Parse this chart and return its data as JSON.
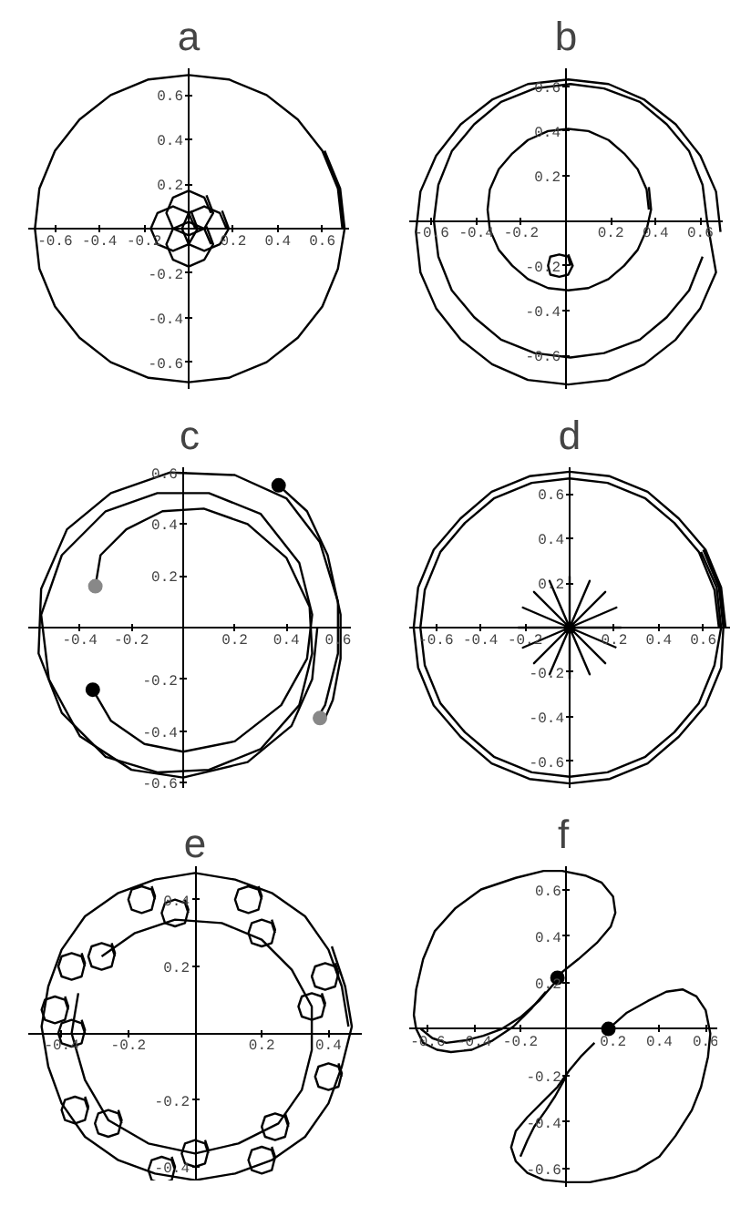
{
  "chart_data": [
    {
      "type": "line",
      "title": "a",
      "xlim": [
        -0.72,
        0.72
      ],
      "ylim": [
        -0.72,
        0.72
      ],
      "xticks": [
        -0.6,
        -0.4,
        -0.2,
        0.2,
        0.4,
        0.6
      ],
      "yticks": [
        -0.6,
        -0.4,
        -0.2,
        0.2,
        0.4,
        0.6
      ],
      "series": [
        {
          "color": "#000000",
          "x": [
            0.69,
            0.67,
            0.6,
            0.49,
            0.35,
            0.18,
            0,
            -0.18,
            -0.35,
            -0.49,
            -0.6,
            -0.67,
            -0.69,
            -0.67,
            -0.6,
            -0.49,
            -0.35,
            -0.18,
            0,
            0.18,
            0.35,
            0.49,
            0.6,
            0.67,
            0.7,
            0.68,
            0.61
          ],
          "values": [
            0,
            0.18,
            0.35,
            0.49,
            0.6,
            0.67,
            0.69,
            0.67,
            0.6,
            0.49,
            0.35,
            0.18,
            0,
            -0.18,
            -0.35,
            -0.49,
            -0.6,
            -0.67,
            -0.69,
            -0.67,
            -0.6,
            -0.49,
            -0.35,
            -0.18,
            0,
            0.18,
            0.35
          ]
        },
        {
          "color": "#000000",
          "x": [
            0.17,
            0.14,
            0.07,
            0,
            -0.03,
            0,
            0.07,
            0.14,
            0.18,
            0.15
          ],
          "values": [
            0,
            0.07,
            0.1,
            0.07,
            0,
            -0.07,
            -0.1,
            -0.07,
            0,
            0.08
          ]
        },
        {
          "color": "#000000",
          "x": [
            0.03,
            0,
            -0.07,
            -0.14,
            -0.17,
            -0.14,
            -0.07,
            0,
            0.04,
            0.01
          ],
          "values": [
            0,
            0.07,
            0.1,
            0.07,
            0,
            -0.07,
            -0.1,
            -0.07,
            0,
            0.08
          ]
        },
        {
          "color": "#000000",
          "x": [
            0.1,
            0.07,
            0,
            -0.07,
            -0.1,
            -0.07,
            0,
            0.07,
            0.11,
            0.08
          ],
          "values": [
            0.07,
            0.14,
            0.17,
            0.14,
            0.07,
            0,
            -0.03,
            0,
            0.07,
            0.15
          ]
        },
        {
          "color": "#000000",
          "x": [
            0.1,
            0.07,
            0,
            -0.07,
            -0.1,
            -0.07,
            0,
            0.07,
            0.11,
            0.08
          ],
          "values": [
            -0.07,
            0,
            0.03,
            0,
            -0.07,
            -0.14,
            -0.17,
            -0.14,
            -0.07,
            0.01
          ]
        }
      ]
    },
    {
      "type": "line",
      "title": "b",
      "xlim": [
        -0.7,
        0.7
      ],
      "ylim": [
        -0.75,
        0.68
      ],
      "xticks": [
        -0.6,
        -0.4,
        -0.2,
        0.2,
        0.4,
        0.6
      ],
      "yticks": [
        -0.6,
        -0.4,
        -0.2,
        0.2,
        0.4,
        0.6
      ],
      "series": [
        {
          "color": "#000000",
          "x": [
            0.69,
            0.67,
            0.6,
            0.49,
            0.35,
            0.19,
            0.01,
            -0.17,
            -0.33,
            -0.47,
            -0.58,
            -0.65,
            -0.67,
            -0.65,
            -0.58,
            -0.47,
            -0.33,
            -0.17,
            0.01,
            0.19,
            0.35,
            0.49,
            0.6,
            0.67,
            0.63,
            0.61,
            0.55,
            0.45,
            0.33,
            0.17,
            0.02,
            -0.14,
            -0.29,
            -0.41,
            -0.51,
            -0.57,
            -0.59,
            -0.57,
            -0.51,
            -0.41,
            -0.29,
            -0.14,
            0.02,
            0.17,
            0.33,
            0.45,
            0.55,
            0.61
          ],
          "values": [
            -0.05,
            0.13,
            0.29,
            0.43,
            0.54,
            0.61,
            0.63,
            0.61,
            0.54,
            0.43,
            0.29,
            0.13,
            -0.05,
            -0.23,
            -0.39,
            -0.53,
            -0.64,
            -0.71,
            -0.73,
            -0.71,
            -0.64,
            -0.53,
            -0.39,
            -0.23,
            0,
            0.16,
            0.31,
            0.43,
            0.53,
            0.59,
            0.61,
            0.59,
            0.53,
            0.43,
            0.31,
            0.16,
            0,
            -0.16,
            -0.31,
            -0.43,
            -0.53,
            -0.59,
            -0.61,
            -0.59,
            -0.53,
            -0.43,
            -0.31,
            -0.16
          ]
        },
        {
          "color": "#000000",
          "x": [
            0.37,
            0.36,
            0.32,
            0.26,
            0.19,
            0.1,
            0.01,
            -0.08,
            -0.17,
            -0.24,
            -0.3,
            -0.34,
            -0.35,
            -0.34,
            -0.3,
            -0.24,
            -0.17,
            -0.08,
            0.01,
            0.1,
            0.19,
            0.26,
            0.32,
            0.36,
            0.38,
            0.37
          ],
          "values": [
            0.05,
            0.14,
            0.23,
            0.3,
            0.36,
            0.4,
            0.41,
            0.4,
            0.36,
            0.3,
            0.23,
            0.14,
            0.05,
            -0.04,
            -0.13,
            -0.2,
            -0.26,
            -0.3,
            -0.31,
            -0.3,
            -0.26,
            -0.2,
            -0.13,
            -0.04,
            0.05,
            0.15
          ]
        },
        {
          "color": "#000000",
          "x": [
            0.02,
            0.01,
            -0.03,
            -0.07,
            -0.08,
            -0.07,
            -0.03,
            0.01,
            0.03,
            0.01
          ],
          "values": [
            -0.2,
            -0.16,
            -0.15,
            -0.16,
            -0.2,
            -0.24,
            -0.25,
            -0.24,
            -0.2,
            -0.15
          ]
        }
      ]
    },
    {
      "type": "line",
      "title": "c",
      "xlim": [
        -0.6,
        0.65
      ],
      "ylim": [
        -0.62,
        0.62
      ],
      "xticks": [
        -0.4,
        -0.2,
        0.2,
        0.4,
        0.6
      ],
      "yticks": [
        -0.6,
        -0.4,
        -0.2,
        0.2,
        0.4,
        0.6
      ],
      "series": [
        {
          "color": "#000000",
          "x": [
            -0.35,
            -0.28,
            -0.15,
            0,
            0.2,
            0.38,
            0.48,
            0.5,
            0.45,
            0.3,
            0.1,
            -0.1,
            -0.3,
            -0.47,
            -0.55,
            -0.52,
            -0.4,
            -0.2,
            0,
            0.25,
            0.42,
            0.5,
            0.52
          ],
          "values": [
            -0.24,
            -0.36,
            -0.45,
            -0.48,
            -0.44,
            -0.3,
            -0.12,
            0.05,
            0.25,
            0.44,
            0.52,
            0.52,
            0.45,
            0.28,
            0.05,
            -0.2,
            -0.42,
            -0.55,
            -0.58,
            -0.52,
            -0.38,
            -0.2,
            0
          ]
        },
        {
          "color": "#000000",
          "x": [
            -0.34,
            -0.32,
            -0.22,
            -0.08,
            0.08,
            0.25,
            0.4,
            0.49,
            0.5,
            0.45,
            0.3,
            0.1,
            -0.1,
            -0.3,
            -0.47,
            -0.56,
            -0.55,
            -0.45,
            -0.28,
            -0.05,
            0.2,
            0.4,
            0.53,
            0.6,
            0.6,
            0.55,
            0.52
          ],
          "values": [
            0.16,
            0.28,
            0.38,
            0.45,
            0.46,
            0.4,
            0.27,
            0.08,
            -0.1,
            -0.3,
            -0.47,
            -0.55,
            -0.56,
            -0.5,
            -0.33,
            -0.1,
            0.15,
            0.38,
            0.52,
            0.6,
            0.59,
            0.5,
            0.33,
            0.1,
            -0.1,
            -0.3,
            -0.35
          ]
        },
        {
          "color": "#000000",
          "x": [
            0.37,
            0.48,
            0.56,
            0.61,
            0.61,
            0.58,
            0.55
          ],
          "values": [
            0.55,
            0.45,
            0.28,
            0.05,
            -0.12,
            -0.28,
            -0.35
          ]
        },
        {
          "type": "scatter",
          "marker": "circle",
          "color": "#000000",
          "x": [
            0.37,
            -0.35
          ],
          "values": [
            0.55,
            -0.24
          ]
        },
        {
          "type": "scatter",
          "marker": "circle",
          "color": "#888888",
          "x": [
            -0.34,
            0.53
          ],
          "values": [
            0.16,
            -0.35
          ]
        }
      ]
    },
    {
      "type": "line",
      "title": "d",
      "xlim": [
        -0.72,
        0.72
      ],
      "ylim": [
        -0.72,
        0.72
      ],
      "xticks": [
        -0.6,
        -0.4,
        -0.2,
        0.2,
        0.4,
        0.6
      ],
      "yticks": [
        -0.6,
        -0.4,
        -0.2,
        0.2,
        0.4,
        0.6
      ],
      "series": [
        {
          "color": "#000000",
          "x": [
            0.67,
            0.65,
            0.58,
            0.47,
            0.34,
            0.17,
            0,
            -0.17,
            -0.34,
            -0.47,
            -0.58,
            -0.65,
            -0.67,
            -0.65,
            -0.58,
            -0.47,
            -0.34,
            -0.17,
            0,
            0.17,
            0.34,
            0.47,
            0.58,
            0.65,
            0.68,
            0.66,
            0.59
          ],
          "values": [
            0,
            0.17,
            0.34,
            0.47,
            0.58,
            0.65,
            0.67,
            0.65,
            0.58,
            0.47,
            0.34,
            0.17,
            0,
            -0.17,
            -0.34,
            -0.47,
            -0.58,
            -0.65,
            -0.67,
            -0.65,
            -0.58,
            -0.47,
            -0.34,
            -0.17,
            0,
            0.18,
            0.34
          ]
        },
        {
          "color": "#000000",
          "x": [
            0.7,
            0.68,
            0.61,
            0.49,
            0.35,
            0.18,
            0,
            -0.18,
            -0.35,
            -0.49,
            -0.61,
            -0.68,
            -0.7,
            -0.68,
            -0.61,
            -0.49,
            -0.35,
            -0.18,
            0,
            0.18,
            0.35,
            0.49,
            0.61,
            0.68,
            0.69,
            0.67,
            0.6
          ],
          "values": [
            0,
            0.18,
            0.35,
            0.49,
            0.61,
            0.68,
            0.7,
            0.68,
            0.61,
            0.49,
            0.35,
            0.18,
            0,
            -0.18,
            -0.35,
            -0.49,
            -0.61,
            -0.68,
            -0.7,
            -0.68,
            -0.61,
            -0.49,
            -0.35,
            -0.18,
            0,
            0.18,
            0.35
          ]
        },
        {
          "color": "#000000",
          "x": [
            0,
            0.23,
            0,
            0.21,
            0,
            0.16,
            0,
            0.09,
            0,
            0,
            0,
            -0.09,
            0,
            -0.16,
            0,
            -0.21,
            0,
            -0.23,
            0,
            -0.21,
            0,
            -0.16,
            0,
            -0.09,
            0,
            0,
            0,
            0.09,
            0,
            0.16,
            0,
            0.21
          ],
          "values": [
            0,
            0,
            0,
            0.09,
            0,
            0.16,
            0,
            0.21,
            0,
            0.23,
            0,
            0.21,
            0,
            0.16,
            0,
            0.09,
            0,
            0,
            0,
            -0.09,
            0,
            -0.16,
            0,
            -0.21,
            0,
            -0.23,
            0,
            -0.21,
            0,
            -0.16,
            0,
            -0.09
          ]
        }
      ]
    },
    {
      "type": "line",
      "title": "e",
      "xlim": [
        -0.5,
        0.5
      ],
      "ylim": [
        -0.46,
        0.5
      ],
      "xticks": [
        -0.4,
        -0.2,
        0.2,
        0.4
      ],
      "yticks": [
        -0.4,
        -0.2,
        0.2,
        0.4
      ],
      "series": [
        {
          "color": "#000000",
          "x": [
            0.46,
            0.44,
            0.4,
            0.33,
            0.23,
            0.12,
            0,
            -0.12,
            -0.23,
            -0.33,
            -0.4,
            -0.44,
            -0.46,
            -0.44,
            -0.4,
            -0.33,
            -0.23,
            -0.12,
            0,
            0.12,
            0.23,
            0.33,
            0.4,
            0.44,
            0.47,
            0.45,
            0.41
          ],
          "values": [
            0.02,
            0.14,
            0.25,
            0.35,
            0.42,
            0.46,
            0.48,
            0.46,
            0.42,
            0.35,
            0.25,
            0.14,
            0.02,
            -0.1,
            -0.21,
            -0.31,
            -0.38,
            -0.42,
            -0.44,
            -0.42,
            -0.38,
            -0.31,
            -0.21,
            -0.1,
            0.02,
            0.14,
            0.26
          ]
        },
        {
          "color": "#000000",
          "x": [
            -0.28,
            -0.18,
            -0.06,
            0.08,
            0.2,
            0.29,
            0.35,
            0.35,
            0.32,
            0.25,
            0.13,
            0,
            -0.14,
            -0.26,
            -0.33,
            -0.37,
            -0.35
          ],
          "values": [
            0.23,
            0.3,
            0.34,
            0.33,
            0.28,
            0.19,
            0.08,
            -0.05,
            -0.17,
            -0.27,
            -0.33,
            -0.36,
            -0.33,
            -0.26,
            -0.14,
            0,
            0.12
          ]
        },
        {
          "color": "#000000",
          "x": [
            -0.12,
            -0.13,
            -0.16,
            -0.19,
            -0.2,
            -0.19,
            -0.16,
            -0.13,
            -0.12,
            -0.13
          ],
          "values": [
            0.4,
            0.43,
            0.44,
            0.43,
            0.4,
            0.37,
            0.36,
            0.37,
            0.41,
            0.44
          ]
        },
        {
          "color": "#000000",
          "x": [
            -0.02,
            -0.03,
            -0.06,
            -0.09,
            -0.1,
            -0.09,
            -0.06,
            -0.03,
            -0.02,
            -0.03
          ],
          "values": [
            0.36,
            0.39,
            0.4,
            0.39,
            0.36,
            0.33,
            0.32,
            0.33,
            0.37,
            0.4
          ]
        },
        {
          "color": "#000000",
          "x": [
            0.2,
            0.19,
            0.16,
            0.13,
            0.12,
            0.13,
            0.16,
            0.19,
            0.2,
            0.19
          ],
          "values": [
            0.4,
            0.43,
            0.44,
            0.43,
            0.4,
            0.37,
            0.36,
            0.37,
            0.41,
            0.44
          ]
        },
        {
          "color": "#000000",
          "x": [
            0.24,
            0.23,
            0.2,
            0.17,
            0.16,
            0.17,
            0.2,
            0.23,
            0.24,
            0.23
          ],
          "values": [
            0.3,
            0.33,
            0.34,
            0.33,
            0.3,
            0.27,
            0.26,
            0.27,
            0.31,
            0.34
          ]
        },
        {
          "color": "#000000",
          "x": [
            0.43,
            0.42,
            0.39,
            0.36,
            0.35,
            0.36,
            0.39,
            0.42,
            0.43,
            0.42
          ],
          "values": [
            0.17,
            0.2,
            0.21,
            0.2,
            0.17,
            0.14,
            0.13,
            0.14,
            0.18,
            0.21
          ]
        },
        {
          "color": "#000000",
          "x": [
            0.39,
            0.38,
            0.35,
            0.32,
            0.31,
            0.32,
            0.35,
            0.38,
            0.39,
            0.38
          ],
          "values": [
            0.08,
            0.11,
            0.12,
            0.11,
            0.08,
            0.05,
            0.04,
            0.05,
            0.09,
            0.12
          ]
        },
        {
          "color": "#000000",
          "x": [
            0.44,
            0.43,
            0.4,
            0.37,
            0.36,
            0.37,
            0.4,
            0.43,
            0.44,
            0.43
          ],
          "values": [
            -0.13,
            -0.1,
            -0.09,
            -0.1,
            -0.13,
            -0.16,
            -0.17,
            -0.16,
            -0.12,
            -0.09
          ]
        },
        {
          "color": "#000000",
          "x": [
            0.28,
            0.27,
            0.24,
            0.21,
            0.2,
            0.21,
            0.24,
            0.27,
            0.28,
            0.27
          ],
          "values": [
            -0.28,
            -0.25,
            -0.24,
            -0.25,
            -0.28,
            -0.31,
            -0.32,
            -0.31,
            -0.27,
            -0.24
          ]
        },
        {
          "color": "#000000",
          "x": [
            0.24,
            0.23,
            0.2,
            0.17,
            0.16,
            0.17,
            0.2,
            0.23,
            0.24,
            0.23
          ],
          "values": [
            -0.38,
            -0.35,
            -0.34,
            -0.35,
            -0.38,
            -0.41,
            -0.42,
            -0.41,
            -0.37,
            -0.34
          ]
        },
        {
          "color": "#000000",
          "x": [
            0.04,
            0.03,
            0,
            -0.03,
            -0.04,
            -0.03,
            0,
            0.03,
            0.04,
            0.03
          ],
          "values": [
            -0.36,
            -0.33,
            -0.32,
            -0.33,
            -0.36,
            -0.39,
            -0.4,
            -0.39,
            -0.35,
            -0.32
          ]
        },
        {
          "color": "#000000",
          "x": [
            -0.06,
            -0.07,
            -0.1,
            -0.13,
            -0.14,
            -0.13,
            -0.1,
            -0.07,
            -0.06,
            -0.07
          ],
          "values": [
            -0.41,
            -0.38,
            -0.37,
            -0.38,
            -0.41,
            -0.44,
            -0.45,
            -0.44,
            -0.4,
            -0.37
          ]
        },
        {
          "color": "#000000",
          "x": [
            -0.22,
            -0.23,
            -0.26,
            -0.29,
            -0.3,
            -0.29,
            -0.26,
            -0.23,
            -0.22,
            -0.23
          ],
          "values": [
            -0.27,
            -0.24,
            -0.23,
            -0.24,
            -0.27,
            -0.3,
            -0.31,
            -0.3,
            -0.26,
            -0.23
          ]
        },
        {
          "color": "#000000",
          "x": [
            -0.32,
            -0.33,
            -0.36,
            -0.39,
            -0.4,
            -0.39,
            -0.36,
            -0.33,
            -0.32,
            -0.33
          ],
          "values": [
            -0.23,
            -0.2,
            -0.19,
            -0.2,
            -0.23,
            -0.26,
            -0.27,
            -0.26,
            -0.22,
            -0.19
          ]
        },
        {
          "color": "#000000",
          "x": [
            -0.33,
            -0.34,
            -0.37,
            -0.4,
            -0.41,
            -0.4,
            -0.37,
            -0.34,
            -0.33,
            -0.34
          ],
          "values": [
            0,
            0.03,
            0.04,
            0.03,
            0,
            -0.03,
            -0.04,
            -0.03,
            0.01,
            0.04
          ]
        },
        {
          "color": "#000000",
          "x": [
            -0.38,
            -0.39,
            -0.42,
            -0.45,
            -0.46,
            -0.45,
            -0.42,
            -0.39,
            -0.38,
            -0.39
          ],
          "values": [
            0.07,
            0.1,
            0.11,
            0.1,
            0.07,
            0.04,
            0.03,
            0.04,
            0.08,
            0.11
          ]
        },
        {
          "color": "#000000",
          "x": [
            -0.33,
            -0.34,
            -0.37,
            -0.4,
            -0.41,
            -0.4,
            -0.37,
            -0.34,
            -0.33,
            -0.34
          ],
          "values": [
            0.2,
            0.23,
            0.24,
            0.23,
            0.2,
            0.17,
            0.16,
            0.17,
            0.21,
            0.24
          ]
        },
        {
          "color": "#000000",
          "x": [
            -0.24,
            -0.25,
            -0.28,
            -0.31,
            -0.32,
            -0.31,
            -0.28,
            -0.25,
            -0.24,
            -0.25
          ],
          "values": [
            0.23,
            0.26,
            0.27,
            0.26,
            0.23,
            0.2,
            0.19,
            0.2,
            0.24,
            0.27
          ]
        }
      ]
    },
    {
      "type": "line",
      "title": "f",
      "xlim": [
        -0.68,
        0.65
      ],
      "ylim": [
        -0.68,
        0.7
      ],
      "xticks": [
        -0.6,
        -0.4,
        -0.2,
        0.2,
        0.4,
        0.6
      ],
      "yticks": [
        -0.6,
        -0.4,
        -0.2,
        0.2,
        0.4,
        0.6
      ],
      "series": [
        {
          "color": "#000000",
          "x": [
            -0.05,
            0.05,
            0.13,
            0.19,
            0.21,
            0.2,
            0.15,
            0.08,
            -0.02,
            -0.1,
            -0.22,
            -0.37,
            -0.48,
            -0.57,
            -0.62,
            -0.65,
            -0.66,
            -0.65,
            -0.62,
            -0.56,
            -0.5,
            -0.41,
            -0.32,
            -0.23,
            -0.15,
            -0.09
          ],
          "values": [
            0.22,
            0.3,
            0.37,
            0.44,
            0.5,
            0.57,
            0.63,
            0.66,
            0.68,
            0.68,
            0.65,
            0.6,
            0.52,
            0.42,
            0.3,
            0.17,
            0.06,
            0,
            -0.06,
            -0.09,
            -0.1,
            -0.09,
            -0.05,
            0.01,
            0.09,
            0.16
          ]
        },
        {
          "color": "#000000",
          "x": [
            -0.63,
            -0.58,
            -0.52,
            -0.44,
            -0.36,
            -0.28,
            -0.2,
            -0.12,
            -0.05
          ],
          "values": [
            0,
            -0.04,
            -0.06,
            -0.05,
            -0.03,
            0,
            0.05,
            0.12,
            0.2
          ]
        },
        {
          "color": "#000000",
          "x": [
            0.18,
            0.26,
            0.35,
            0.43,
            0.5,
            0.56,
            0.6,
            0.62,
            0.61,
            0.58,
            0.54,
            0.47,
            0.4,
            0.3,
            0.2,
            0.1,
            0,
            -0.1,
            -0.17,
            -0.22,
            -0.24,
            -0.22,
            -0.17,
            -0.1,
            -0.04,
            0.01,
            0.06,
            0.12
          ],
          "values": [
            0,
            0.07,
            0.12,
            0.16,
            0.17,
            0.14,
            0.08,
            -0.02,
            -0.12,
            -0.25,
            -0.35,
            -0.46,
            -0.55,
            -0.61,
            -0.64,
            -0.66,
            -0.66,
            -0.65,
            -0.62,
            -0.57,
            -0.51,
            -0.44,
            -0.38,
            -0.31,
            -0.25,
            -0.18,
            -0.12,
            -0.06
          ]
        },
        {
          "color": "#000000",
          "x": [
            -0.2,
            -0.17,
            -0.14,
            -0.09,
            -0.05,
            0
          ],
          "values": [
            -0.55,
            -0.48,
            -0.42,
            -0.35,
            -0.29,
            -0.2
          ]
        },
        {
          "type": "scatter",
          "marker": "circle",
          "color": "#000000",
          "x": [
            -0.04,
            0.18
          ],
          "values": [
            0.22,
            0
          ]
        }
      ]
    }
  ]
}
